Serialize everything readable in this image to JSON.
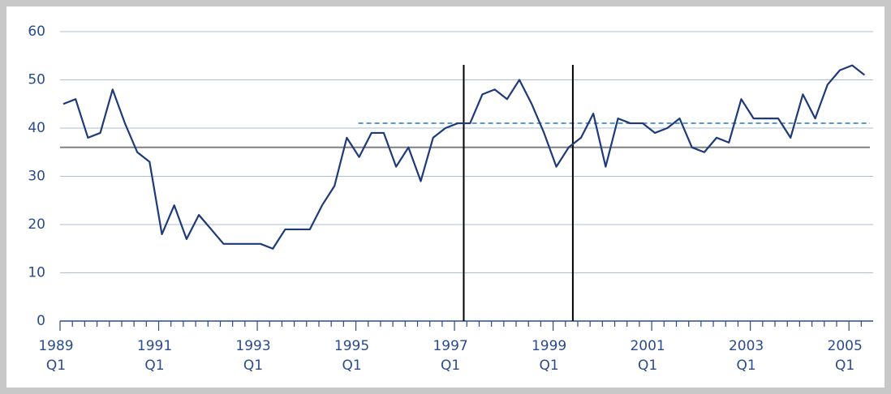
{
  "chart_data": {
    "type": "line",
    "categories": [
      "1989 Q1",
      null,
      null,
      null,
      null,
      null,
      null,
      null,
      "1991 Q1",
      null,
      null,
      null,
      null,
      null,
      null,
      null,
      "1993 Q1",
      null,
      null,
      null,
      null,
      null,
      null,
      null,
      "1995 Q1",
      null,
      null,
      null,
      null,
      null,
      null,
      null,
      "1997 Q1",
      null,
      null,
      null,
      null,
      null,
      null,
      null,
      "1999 Q1",
      null,
      null,
      null,
      null,
      null,
      null,
      null,
      "2001 Q1",
      null,
      null,
      null,
      null,
      null,
      null,
      null,
      "2003 Q1",
      null,
      null,
      null,
      null,
      null,
      null,
      null,
      "2005 Q1",
      null
    ],
    "series": [
      {
        "color": "#1f3a7a",
        "values": [
          45,
          46,
          38,
          39,
          48,
          41,
          35,
          33,
          18,
          24,
          17,
          22,
          19,
          16,
          16,
          16,
          16,
          15,
          19,
          19,
          19,
          24,
          28,
          38,
          34,
          39,
          39,
          32,
          36,
          29,
          38,
          40,
          41,
          41,
          47,
          48,
          46,
          50,
          45,
          39,
          32,
          36,
          38,
          43,
          32,
          42,
          41,
          41,
          39,
          40,
          42,
          36,
          35,
          38,
          37,
          46,
          42,
          42,
          42,
          38,
          47,
          42,
          49,
          52,
          53,
          51
        ]
      }
    ],
    "hlines": [
      {
        "value": 36,
        "color": "#808080",
        "dashed": false,
        "start": 0
      },
      {
        "value": 41,
        "color": "#5b9bd5",
        "dashed": true,
        "start": 24.2
      }
    ],
    "vlines": [
      32.75,
      41.6
    ],
    "ylim": [
      0,
      60
    ],
    "yticks": [
      0,
      10,
      20,
      30,
      40,
      50,
      60
    ],
    "grid": true
  }
}
